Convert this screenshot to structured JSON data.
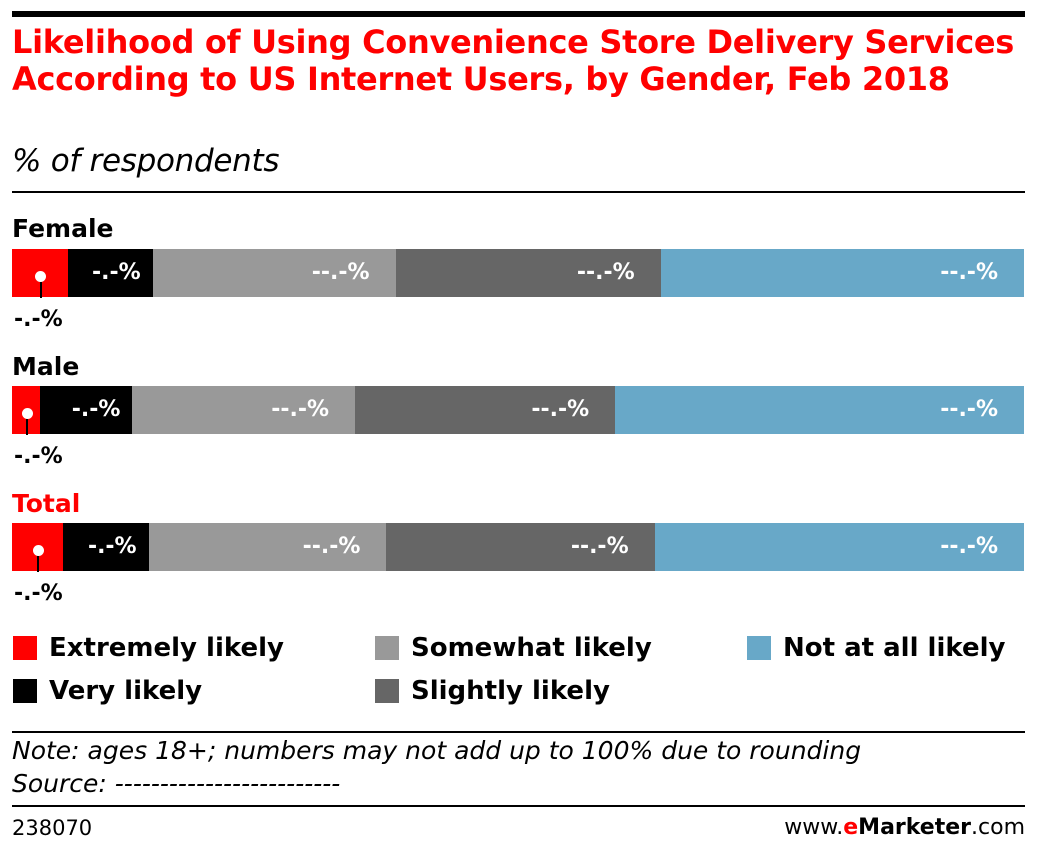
{
  "header": {
    "title": "Likelihood of Using Convenience Store Delivery Services According to US Internet Users, by Gender, Feb 2018",
    "subtitle": "% of respondents"
  },
  "colors": {
    "title": "#ff0000",
    "extremely_likely": "#ff0000",
    "very_likely": "#000000",
    "somewhat_likely": "#999999",
    "slightly_likely": "#666666",
    "not_at_all_likely": "#68a8c8"
  },
  "chart_data": {
    "type": "bar",
    "orientation": "horizontal",
    "stacked": true,
    "categories": [
      "Female",
      "Male",
      "Total"
    ],
    "series": [
      {
        "name": "Extremely likely",
        "values": [
          5.5,
          2.8,
          5.0
        ],
        "value_labels": [
          "-.-%",
          "-.-%",
          "-.-%"
        ]
      },
      {
        "name": "Very likely",
        "values": [
          8.4,
          9.1,
          8.5
        ],
        "value_labels": [
          "-.-%",
          "-.-%",
          "-.-%"
        ]
      },
      {
        "name": "Somewhat likely",
        "values": [
          24.0,
          22.0,
          23.5
        ],
        "value_labels": [
          "--.-%",
          "--.-%",
          "--.-%"
        ]
      },
      {
        "name": "Slightly likely",
        "values": [
          26.2,
          25.7,
          26.5
        ],
        "value_labels": [
          "--.-%",
          "--.-%",
          "--.-%"
        ]
      },
      {
        "name": "Not at all likely",
        "values": [
          35.9,
          40.4,
          36.5
        ],
        "value_labels": [
          "--.-%",
          "--.-%",
          "--.-%"
        ]
      }
    ],
    "xlim": [
      0,
      100
    ],
    "grid": false,
    "legend_position": "bottom"
  },
  "legend": {
    "items": [
      {
        "label": "Extremely likely"
      },
      {
        "label": "Very likely"
      },
      {
        "label": "Somewhat likely"
      },
      {
        "label": "Slightly likely"
      },
      {
        "label": "Not at all likely"
      }
    ]
  },
  "footer": {
    "note": "Note: ages 18+; numbers may not add up to 100% due to rounding",
    "source": "Source: -------------------------",
    "chart_id": "238070",
    "brand_prefix": "www.",
    "brand_e": "e",
    "brand_name": "Marketer",
    "brand_suffix": ".com"
  }
}
